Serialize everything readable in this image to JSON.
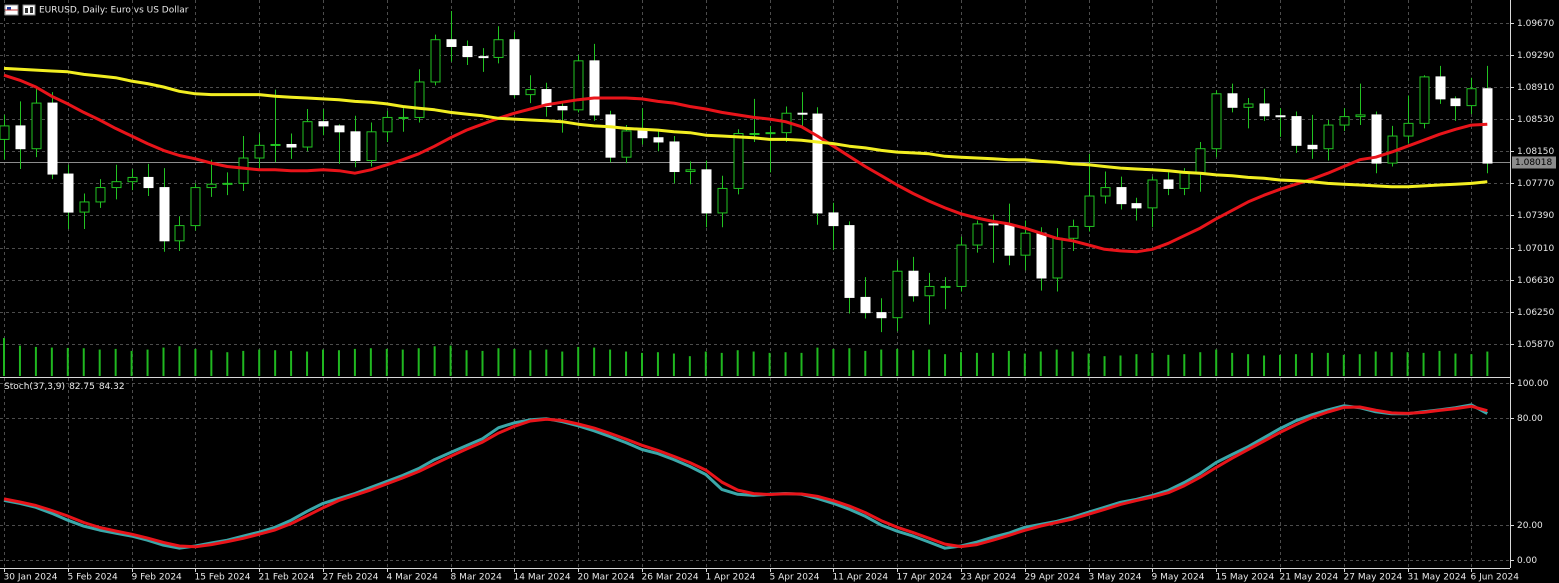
{
  "chart_data": [
    {
      "type": "candlestick",
      "title": "EURUSD, Daily:  Euro vs US Dollar",
      "categories": [
        "30 Jan 2024",
        null,
        null,
        null,
        "5 Feb 2024",
        null,
        null,
        null,
        "9 Feb 2024",
        null,
        null,
        null,
        "15 Feb 2024",
        null,
        null,
        null,
        "21 Feb 2024",
        null,
        null,
        null,
        "27 Feb 2024",
        null,
        null,
        null,
        "4 Mar 2024",
        null,
        null,
        null,
        "8 Mar 2024",
        null,
        null,
        null,
        "14 Mar 2024",
        null,
        null,
        null,
        "20 Mar 2024",
        null,
        null,
        null,
        "26 Mar 2024",
        null,
        null,
        null,
        "1 Apr 2024",
        null,
        null,
        null,
        "5 Apr 2024",
        null,
        null,
        null,
        "11 Apr 2024",
        null,
        null,
        null,
        "17 Apr 2024",
        null,
        null,
        null,
        "23 Apr 2024",
        null,
        null,
        null,
        "29 Apr 2024",
        null,
        null,
        null,
        "3 May 2024",
        null,
        null,
        null,
        "9 May 2024",
        null,
        null,
        null,
        "15 May 2024",
        null,
        null,
        null,
        "21 May 2024",
        null,
        null,
        null,
        "27 May 2024",
        null,
        null,
        null,
        "31 May 2024",
        null,
        null,
        null,
        "6 Jun 2024",
        null
      ],
      "open": [
        1.0829,
        1.0845,
        1.0818,
        1.0872,
        1.0788,
        1.0743,
        1.0755,
        1.0772,
        1.0779,
        1.0784,
        1.0772,
        1.0709,
        1.0727,
        1.0772,
        1.0776,
        1.0777,
        1.0807,
        1.0822,
        1.0823,
        1.082,
        1.085,
        1.0845,
        1.0838,
        1.0804,
        1.0838,
        1.0855,
        1.0855,
        1.0897,
        1.0947,
        1.0939,
        1.0927,
        1.0926,
        1.0947,
        1.0882,
        1.0888,
        1.0868,
        1.0864,
        1.0922,
        1.0858,
        1.0808,
        1.0839,
        1.0831,
        1.0826,
        1.0791,
        1.0793,
        1.0742,
        1.0771,
        1.0836,
        1.0836,
        1.0837,
        1.086,
        1.0859,
        1.0742,
        1.0727,
        1.0642,
        1.0624,
        1.0618,
        1.0673,
        1.0644,
        1.0655,
        1.0655,
        1.0704,
        1.0729,
        1.0728,
        1.0692,
        1.0718,
        1.0665,
        1.0712,
        1.0726,
        1.0762,
        1.0772,
        1.0753,
        1.0748,
        1.0781,
        1.0771,
        1.0789,
        1.0818,
        1.0883,
        1.0867,
        1.0871,
        1.0857,
        1.0856,
        1.0822,
        1.0818,
        1.0846,
        1.0856,
        1.0858,
        1.0801,
        1.0833,
        1.0848,
        1.0903,
        1.0877,
        1.0869,
        1.0889
      ],
      "high": [
        1.0858,
        1.0874,
        1.0889,
        1.0885,
        1.0799,
        1.0765,
        1.0782,
        1.0799,
        1.0794,
        1.08,
        1.0795,
        1.0738,
        1.0777,
        1.0805,
        1.079,
        1.0833,
        1.0836,
        1.0888,
        1.0836,
        1.0865,
        1.0865,
        1.0847,
        1.0857,
        1.0849,
        1.0863,
        1.0866,
        1.0912,
        1.0953,
        1.0981,
        1.0946,
        1.0937,
        1.0963,
        1.0956,
        1.0905,
        1.0896,
        1.0874,
        1.0929,
        1.0942,
        1.0863,
        1.0846,
        1.0866,
        1.084,
        1.0833,
        1.0803,
        1.0804,
        1.0786,
        1.0841,
        1.0877,
        1.0845,
        1.0868,
        1.0885,
        1.0867,
        1.0754,
        1.0732,
        1.0666,
        1.0641,
        1.0686,
        1.069,
        1.0671,
        1.0666,
        1.0714,
        1.0733,
        1.074,
        1.0753,
        1.0733,
        1.0725,
        1.0724,
        1.0734,
        1.0812,
        1.0791,
        1.0785,
        1.076,
        1.0785,
        1.079,
        1.0795,
        1.0826,
        1.0887,
        1.0895,
        1.0878,
        1.0889,
        1.0866,
        1.0862,
        1.0858,
        1.0852,
        1.0866,
        1.0895,
        1.0862,
        1.0845,
        1.0881,
        1.0905,
        1.0916,
        1.088,
        1.0902,
        1.0916
      ],
      "low": [
        1.0805,
        1.0794,
        1.0808,
        1.0782,
        1.0723,
        1.0723,
        1.0748,
        1.0758,
        1.0769,
        1.0762,
        1.0696,
        1.0697,
        1.0721,
        1.0761,
        1.0763,
        1.0768,
        1.0793,
        1.0802,
        1.0806,
        1.0815,
        1.0834,
        1.08,
        1.0796,
        1.0797,
        1.0826,
        1.0838,
        1.0849,
        1.0893,
        1.0921,
        1.0917,
        1.0909,
        1.0919,
        1.0878,
        1.0872,
        1.0856,
        1.0837,
        1.0861,
        1.0851,
        1.0802,
        1.0801,
        1.0823,
        1.0815,
        1.0777,
        1.0776,
        1.0725,
        1.0725,
        1.0764,
        1.0826,
        1.079,
        1.0826,
        1.0844,
        1.0728,
        1.0698,
        1.0623,
        1.0617,
        1.0601,
        1.0602,
        1.0637,
        1.061,
        1.0628,
        1.0649,
        1.0695,
        1.0683,
        1.068,
        1.0674,
        1.065,
        1.0649,
        1.0697,
        1.072,
        1.0753,
        1.0746,
        1.0733,
        1.0725,
        1.0763,
        1.0763,
        1.0767,
        1.0808,
        1.0861,
        1.0842,
        1.0851,
        1.0832,
        1.0813,
        1.0806,
        1.0804,
        1.0839,
        1.0846,
        1.0789,
        1.0797,
        1.0824,
        1.0842,
        1.0871,
        1.0851,
        1.0859,
        1.0789
      ],
      "close": [
        1.0845,
        1.0818,
        1.0872,
        1.0788,
        1.0743,
        1.0755,
        1.0772,
        1.0779,
        1.0784,
        1.0772,
        1.0709,
        1.0727,
        1.0772,
        1.0776,
        1.0777,
        1.0807,
        1.0822,
        1.0823,
        1.082,
        1.085,
        1.0845,
        1.0838,
        1.0804,
        1.0838,
        1.0855,
        1.0855,
        1.0897,
        1.0947,
        1.0939,
        1.0927,
        1.0926,
        1.0947,
        1.0882,
        1.0888,
        1.0868,
        1.0864,
        1.0922,
        1.0858,
        1.0808,
        1.0839,
        1.0831,
        1.0826,
        1.0791,
        1.0793,
        1.0742,
        1.0771,
        1.0836,
        1.0836,
        1.0837,
        1.086,
        1.0859,
        1.0742,
        1.0727,
        1.0642,
        1.0624,
        1.0618,
        1.0673,
        1.0644,
        1.0655,
        1.0655,
        1.0704,
        1.0729,
        1.0728,
        1.0692,
        1.0718,
        1.0665,
        1.0712,
        1.0726,
        1.0762,
        1.0772,
        1.0753,
        1.0748,
        1.0781,
        1.0771,
        1.0789,
        1.0818,
        1.0883,
        1.0867,
        1.0871,
        1.0857,
        1.0856,
        1.0822,
        1.0818,
        1.0846,
        1.0856,
        1.0858,
        1.0801,
        1.0833,
        1.0848,
        1.0903,
        1.0877,
        1.0869,
        1.0889,
        1.0801
      ],
      "up_color": "#000000",
      "down_color": "#ffffff",
      "wick_color": "#22c322",
      "lines": [
        {
          "color": "#e8141a",
          "values": [
            1.0905,
            1.0899,
            1.0891,
            1.088,
            1.0871,
            1.0861,
            1.0852,
            1.0842,
            1.0833,
            1.0824,
            1.0816,
            1.081,
            1.0806,
            1.0801,
            1.0797,
            1.0795,
            1.0793,
            1.0793,
            1.0792,
            1.0792,
            1.0793,
            1.0792,
            1.0789,
            1.0793,
            1.0799,
            1.0805,
            1.0812,
            1.0821,
            1.0831,
            1.084,
            1.0847,
            1.0854,
            1.086,
            1.0865,
            1.087,
            1.0873,
            1.0876,
            1.0878,
            1.0878,
            1.0878,
            1.0877,
            1.0874,
            1.0872,
            1.0868,
            1.0865,
            1.0861,
            1.0858,
            1.0855,
            1.0853,
            1.085,
            1.0844,
            1.0833,
            1.0821,
            1.0809,
            1.0797,
            1.0786,
            1.0775,
            1.0765,
            1.0756,
            1.0748,
            1.0741,
            1.0736,
            1.0732,
            1.0729,
            1.0724,
            1.0718,
            1.0712,
            1.0709,
            1.0704,
            1.0699,
            1.0697,
            1.0696,
            1.0699,
            1.0706,
            1.0715,
            1.0724,
            1.0735,
            1.0745,
            1.0755,
            1.0763,
            1.077,
            1.0776,
            1.0782,
            1.0789,
            1.0797,
            1.0805,
            1.0808,
            1.0814,
            1.0821,
            1.0828,
            1.0835,
            1.0841,
            1.0846,
            1.0847
          ]
        },
        {
          "color": "#f2ee22",
          "values": [
            1.0913,
            1.0912,
            1.0911,
            1.091,
            1.0909,
            1.0906,
            1.0904,
            1.0902,
            1.0898,
            1.0895,
            1.0891,
            1.0886,
            1.0883,
            1.0882,
            1.0882,
            1.0882,
            1.0882,
            1.088,
            1.0879,
            1.0878,
            1.0877,
            1.0876,
            1.0874,
            1.0873,
            1.0871,
            1.0868,
            1.0866,
            1.0864,
            1.0861,
            1.0859,
            1.0857,
            1.0854,
            1.0853,
            1.0852,
            1.0851,
            1.085,
            1.0847,
            1.0845,
            1.0844,
            1.0842,
            1.0841,
            1.084,
            1.0838,
            1.0837,
            1.0834,
            1.0833,
            1.0832,
            1.0831,
            1.0829,
            1.0829,
            1.0828,
            1.0826,
            1.0824,
            1.0821,
            1.0819,
            1.0816,
            1.0814,
            1.0813,
            1.0812,
            1.0809,
            1.0808,
            1.0807,
            1.0806,
            1.0805,
            1.0805,
            1.0803,
            1.0802,
            1.08,
            1.0799,
            1.0797,
            1.0795,
            1.0794,
            1.0793,
            1.0792,
            1.079,
            1.0789,
            1.0787,
            1.0786,
            1.0784,
            1.0783,
            1.0781,
            1.078,
            1.0779,
            1.0777,
            1.0776,
            1.0775,
            1.0774,
            1.0773,
            1.0773,
            1.0774,
            1.0775,
            1.0776,
            1.0777,
            1.0779
          ]
        }
      ],
      "volume": {
        "color": "#20b820",
        "values": [
          115,
          92,
          88,
          86,
          85,
          84,
          80,
          82,
          76,
          80,
          86,
          90,
          82,
          78,
          72,
          76,
          80,
          78,
          76,
          74,
          80,
          78,
          82,
          84,
          82,
          80,
          84,
          90,
          92,
          78,
          76,
          84,
          82,
          78,
          80,
          74,
          88,
          86,
          80,
          74,
          70,
          72,
          68,
          60,
          74,
          70,
          78,
          74,
          70,
          72,
          70,
          86,
          82,
          84,
          76,
          80,
          82,
          78,
          80,
          66,
          72,
          70,
          70,
          76,
          68,
          74,
          80,
          74,
          68,
          60,
          62,
          66,
          70,
          64,
          66,
          72,
          80,
          70,
          66,
          62,
          64,
          66,
          70,
          70,
          64,
          66,
          74,
          72,
          72,
          70,
          76,
          68,
          66,
          74
        ]
      },
      "last_price": 1.08018,
      "ylim": [
        1.0549,
        1.0994
      ],
      "yticks": [
        {
          "value": 1.0967,
          "label": "1.09670"
        },
        {
          "value": 1.0929,
          "label": "1.09290"
        },
        {
          "value": 1.0891,
          "label": "1.08910"
        },
        {
          "value": 1.0853,
          "label": "1.08530"
        },
        {
          "value": 1.0815,
          "label": "1.08150"
        },
        {
          "value": 1.0777,
          "label": "1.07770"
        },
        {
          "value": 1.0739,
          "label": "1.07390"
        },
        {
          "value": 1.0701,
          "label": "1.07010"
        },
        {
          "value": 1.0663,
          "label": "1.06630"
        },
        {
          "value": 1.0625,
          "label": "1.06250"
        },
        {
          "value": 1.0587,
          "label": "1.05870"
        }
      ],
      "grid": true
    },
    {
      "type": "stochastic",
      "label": "Stoch(37,3,9)",
      "series": [
        {
          "color": "#3ba7a9",
          "values": [
            33.7,
            32.0,
            29.8,
            26.4,
            22.5,
            19.1,
            16.9,
            15.2,
            13.5,
            11.2,
            8.4,
            6.7,
            7.9,
            9.6,
            11.2,
            13.5,
            15.7,
            18.5,
            22.5,
            27.5,
            32.0,
            34.8,
            37.6,
            41.0,
            44.4,
            47.8,
            51.7,
            56.7,
            60.7,
            64.6,
            68.5,
            74.7,
            77.5,
            79.2,
            79.8,
            78.1,
            75.8,
            73.0,
            69.7,
            66.3,
            62.4,
            60.1,
            56.7,
            52.8,
            48.3,
            39.9,
            37.1,
            36.5,
            37.1,
            37.6,
            37.1,
            34.8,
            32.0,
            28.7,
            24.7,
            19.7,
            16.3,
            13.5,
            10.1,
            6.7,
            7.9,
            10.1,
            12.9,
            15.2,
            18.5,
            20.2,
            21.9,
            24.2,
            27.0,
            29.8,
            32.6,
            34.3,
            36.5,
            39.3,
            43.8,
            48.9,
            55.1,
            59.6,
            64.0,
            69.1,
            74.2,
            78.7,
            82.0,
            84.8,
            87.1,
            86.0,
            83.7,
            82.6,
            82.6,
            83.7,
            84.8,
            86.0,
            87.6,
            82.75
          ]
        },
        {
          "color": "#e8141a",
          "values": [
            34.5,
            32.8,
            30.8,
            28.0,
            24.8,
            21.2,
            18.4,
            16.4,
            14.6,
            12.4,
            9.9,
            7.9,
            7.5,
            8.7,
            10.4,
            12.3,
            14.6,
            17.0,
            20.6,
            25.0,
            29.5,
            33.6,
            36.6,
            39.6,
            43.0,
            46.4,
            50.0,
            54.3,
            58.6,
            62.7,
            66.6,
            71.7,
            75.5,
            78.5,
            79.5,
            78.8,
            76.8,
            74.5,
            71.5,
            68.3,
            64.8,
            61.9,
            58.5,
            55.0,
            50.8,
            44.0,
            39.5,
            37.5,
            37.0,
            37.4,
            37.3,
            36.0,
            33.5,
            30.5,
            26.8,
            22.2,
            18.5,
            15.5,
            12.3,
            9.0,
            7.6,
            8.7,
            11.2,
            13.9,
            16.8,
            19.2,
            21.2,
            23.2,
            25.9,
            28.6,
            31.4,
            33.6,
            35.6,
            38.0,
            42.0,
            46.8,
            52.3,
            57.5,
            62.4,
            67.2,
            72.1,
            76.5,
            80.5,
            83.6,
            86.2,
            86.4,
            84.6,
            83.1,
            82.8,
            83.4,
            84.5,
            85.5,
            86.8,
            84.32
          ]
        }
      ],
      "ylim": [
        -4.5,
        102.8
      ],
      "yticks": [
        {
          "value": 100,
          "label": "100.00"
        },
        {
          "value": 80,
          "label": "80.00"
        },
        {
          "value": 20,
          "label": "20.00"
        },
        {
          "value": 0,
          "label": "0.00"
        }
      ],
      "grid": true
    }
  ]
}
